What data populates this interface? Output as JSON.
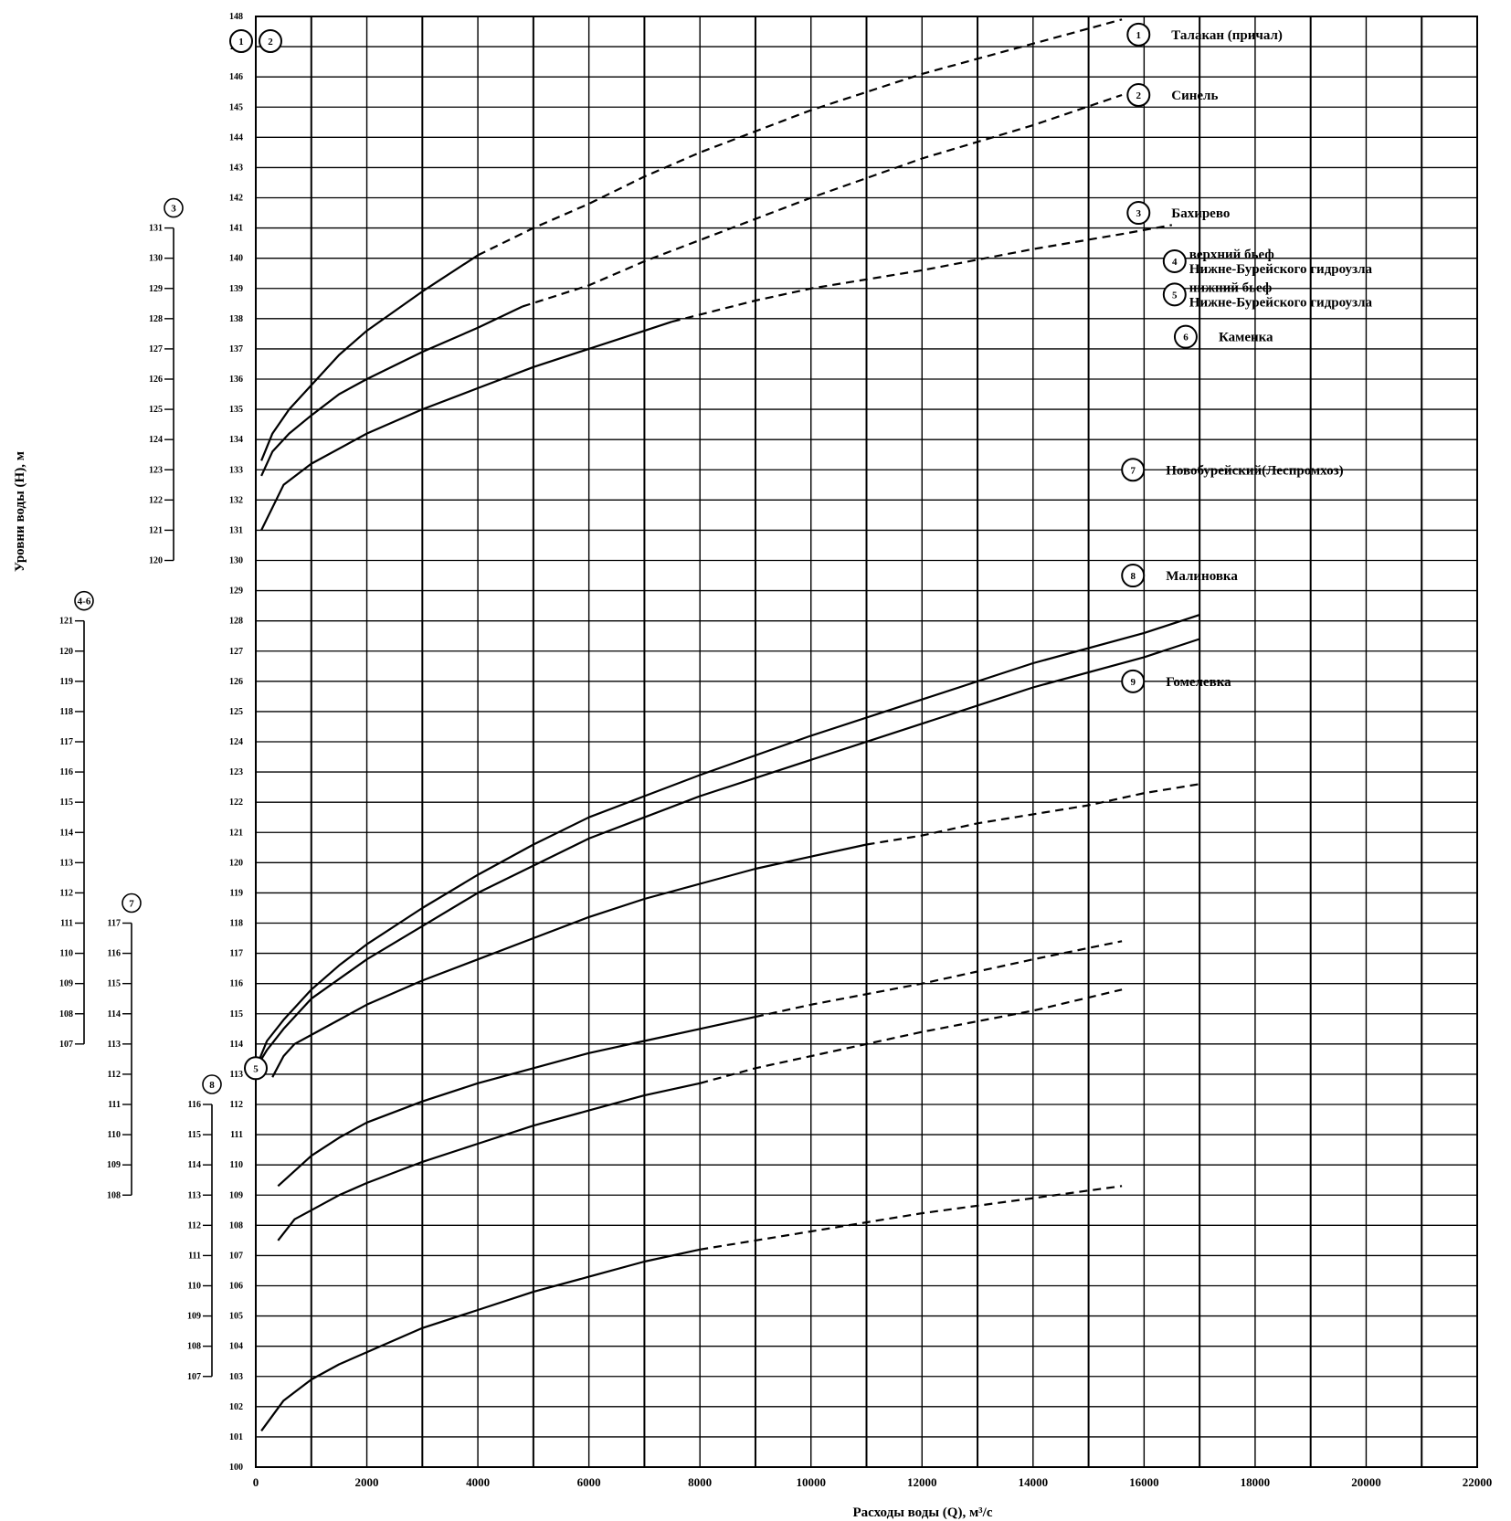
{
  "chart_data": {
    "type": "line",
    "xlabel": "Расходы воды (Q), м³/с",
    "ylabel": "Уровни воды (Н), м",
    "xlim": [
      0,
      22000
    ],
    "ylim": [
      100,
      148
    ],
    "grid": true,
    "x_ticks": [
      "0",
      "2000",
      "4000",
      "6000",
      "8000",
      "10000",
      "12000",
      "14000",
      "16000",
      "18000",
      "20000",
      "22000"
    ],
    "y_ticks": [
      "100",
      "101",
      "102",
      "103",
      "104",
      "105",
      "106",
      "107",
      "108",
      "109",
      "110",
      "111",
      "112",
      "113",
      "114",
      "115",
      "116",
      "117",
      "118",
      "119",
      "120",
      "121",
      "122",
      "123",
      "124",
      "125",
      "126",
      "127",
      "128",
      "129",
      "130",
      "131",
      "132",
      "133",
      "134",
      "135",
      "136",
      "137",
      "138",
      "139",
      "140",
      "141",
      "142",
      "143",
      "144",
      "145",
      "146",
      "147",
      "148"
    ],
    "aux_axes": [
      {
        "id": "4-6",
        "values": [
          "107",
          "108",
          "109",
          "110",
          "111",
          "112",
          "113",
          "114",
          "115",
          "116",
          "117",
          "118",
          "119",
          "120",
          "121"
        ],
        "from": 114,
        "to": 128
      },
      {
        "id": "3",
        "values": [
          "120",
          "121",
          "122",
          "123",
          "124",
          "125",
          "126",
          "127",
          "128",
          "129",
          "130",
          "131"
        ],
        "from": 130,
        "to": 141
      },
      {
        "id": "7",
        "values": [
          "108",
          "109",
          "110",
          "111",
          "112",
          "113",
          "114",
          "115",
          "116",
          "117"
        ],
        "from": 109,
        "to": 118
      },
      {
        "id": "8",
        "values": [
          "107",
          "108",
          "109",
          "110",
          "111",
          "112",
          "113",
          "114",
          "115",
          "116"
        ],
        "from": 103,
        "to": 112
      }
    ],
    "series": [
      {
        "id": "1",
        "name": "Талакан (причал)",
        "label_pos": [
          15900,
          147.4
        ],
        "solid": [
          [
            100,
            133.3
          ],
          [
            300,
            134.2
          ],
          [
            600,
            135.0
          ],
          [
            1000,
            135.8
          ],
          [
            1500,
            136.8
          ],
          [
            2000,
            137.6
          ],
          [
            3000,
            138.9
          ],
          [
            4000,
            140.1
          ]
        ],
        "dashed": [
          [
            4000,
            140.1
          ],
          [
            5000,
            141.0
          ],
          [
            6000,
            141.8
          ],
          [
            7000,
            142.7
          ],
          [
            8000,
            143.5
          ],
          [
            10000,
            144.9
          ],
          [
            12000,
            146.1
          ],
          [
            14000,
            147.1
          ],
          [
            15600,
            147.9
          ]
        ]
      },
      {
        "id": "2",
        "name": "Синель",
        "label_pos": [
          15900,
          145.4
        ],
        "solid": [
          [
            100,
            132.8
          ],
          [
            300,
            133.6
          ],
          [
            600,
            134.2
          ],
          [
            1000,
            134.8
          ],
          [
            1500,
            135.5
          ],
          [
            2000,
            136.0
          ],
          [
            3000,
            136.9
          ],
          [
            4000,
            137.7
          ],
          [
            4800,
            138.4
          ]
        ],
        "dashed": [
          [
            4800,
            138.4
          ],
          [
            6000,
            139.1
          ],
          [
            7000,
            139.9
          ],
          [
            8000,
            140.6
          ],
          [
            10000,
            142.0
          ],
          [
            12000,
            143.3
          ],
          [
            14000,
            144.4
          ],
          [
            15600,
            145.4
          ]
        ]
      },
      {
        "id": "3",
        "name": "Бахирево",
        "label_pos": [
          15900,
          141.5
        ],
        "solid": [
          [
            100,
            131.0
          ],
          [
            500,
            132.5
          ],
          [
            1000,
            133.2
          ],
          [
            2000,
            134.2
          ],
          [
            3000,
            135.0
          ],
          [
            4000,
            135.7
          ],
          [
            5000,
            136.4
          ],
          [
            6000,
            137.0
          ],
          [
            7000,
            137.6
          ],
          [
            7500,
            137.9
          ]
        ],
        "dashed": [
          [
            7500,
            137.9
          ],
          [
            9000,
            138.6
          ],
          [
            10000,
            139.0
          ],
          [
            12000,
            139.6
          ],
          [
            14000,
            140.3
          ],
          [
            15600,
            140.8
          ],
          [
            16500,
            141.1
          ]
        ]
      },
      {
        "id": "4",
        "name": "верхний бьеф Нижне-Бурейского гидроузла",
        "label_pos": [
          16550,
          139.9
        ],
        "solid": [
          [
            0,
            113.2
          ],
          [
            200,
            114.1
          ],
          [
            500,
            114.8
          ],
          [
            1000,
            115.8
          ],
          [
            1500,
            116.6
          ],
          [
            2000,
            117.3
          ],
          [
            3000,
            118.5
          ],
          [
            4000,
            119.6
          ],
          [
            5000,
            120.6
          ],
          [
            6000,
            121.5
          ],
          [
            7000,
            122.2
          ],
          [
            8000,
            122.9
          ],
          [
            10000,
            124.2
          ],
          [
            12000,
            125.4
          ],
          [
            14000,
            126.6
          ],
          [
            16000,
            127.6
          ],
          [
            17000,
            128.2
          ]
        ]
      },
      {
        "id": "5",
        "name": "нижний бьеф Нижне-Бурейского гидроузла",
        "label_pos": [
          16550,
          138.8
        ],
        "solid": [
          [
            0,
            113.2
          ],
          [
            200,
            113.8
          ],
          [
            500,
            114.5
          ],
          [
            1000,
            115.5
          ],
          [
            2000,
            116.8
          ],
          [
            3000,
            117.9
          ],
          [
            4000,
            119.0
          ],
          [
            5000,
            119.9
          ],
          [
            6000,
            120.8
          ],
          [
            7000,
            121.5
          ],
          [
            8000,
            122.2
          ],
          [
            10000,
            123.4
          ],
          [
            12000,
            124.6
          ],
          [
            14000,
            125.8
          ],
          [
            16000,
            126.8
          ],
          [
            17000,
            127.4
          ]
        ]
      },
      {
        "id": "6",
        "name": "Каменка",
        "label_pos": [
          16750,
          137.4
        ],
        "solid": [
          [
            300,
            112.9
          ],
          [
            500,
            113.6
          ],
          [
            700,
            114.0
          ],
          [
            1000,
            114.3
          ],
          [
            1500,
            114.8
          ],
          [
            2000,
            115.3
          ],
          [
            3000,
            116.1
          ],
          [
            4000,
            116.8
          ],
          [
            5000,
            117.5
          ],
          [
            6000,
            118.2
          ],
          [
            7000,
            118.8
          ],
          [
            8000,
            119.3
          ],
          [
            9000,
            119.8
          ],
          [
            10000,
            120.2
          ],
          [
            11000,
            120.6
          ]
        ],
        "dashed": [
          [
            11000,
            120.6
          ],
          [
            12000,
            120.9
          ],
          [
            13000,
            121.3
          ],
          [
            14000,
            121.6
          ],
          [
            15000,
            121.9
          ],
          [
            16000,
            122.3
          ],
          [
            17000,
            122.6
          ]
        ]
      },
      {
        "id": "7",
        "name": "Новобурейский(Леспромхоз)",
        "label_pos": [
          15800,
          133.0
        ],
        "solid": [
          [
            400,
            109.3
          ],
          [
            700,
            109.8
          ],
          [
            1000,
            110.3
          ],
          [
            1500,
            110.9
          ],
          [
            2000,
            111.4
          ],
          [
            3000,
            112.1
          ],
          [
            4000,
            112.7
          ],
          [
            5000,
            113.2
          ],
          [
            6000,
            113.7
          ],
          [
            7000,
            114.1
          ],
          [
            8000,
            114.5
          ],
          [
            9000,
            114.9
          ]
        ],
        "dashed": [
          [
            9000,
            114.9
          ],
          [
            10000,
            115.3
          ],
          [
            12000,
            116.0
          ],
          [
            14000,
            116.8
          ],
          [
            15600,
            117.4
          ]
        ]
      },
      {
        "id": "8",
        "name": "Малиновка",
        "label_pos": [
          15800,
          129.5
        ],
        "solid": [
          [
            400,
            107.5
          ],
          [
            700,
            108.2
          ],
          [
            1000,
            108.5
          ],
          [
            1500,
            109.0
          ],
          [
            2000,
            109.4
          ],
          [
            3000,
            110.1
          ],
          [
            4000,
            110.7
          ],
          [
            5000,
            111.3
          ],
          [
            6000,
            111.8
          ],
          [
            7000,
            112.3
          ],
          [
            8000,
            112.7
          ]
        ],
        "dashed": [
          [
            8000,
            112.7
          ],
          [
            9000,
            113.2
          ],
          [
            10000,
            113.6
          ],
          [
            12000,
            114.4
          ],
          [
            14000,
            115.1
          ],
          [
            15600,
            115.8
          ]
        ]
      },
      {
        "id": "9",
        "name": "Гомелевка",
        "label_pos": [
          15800,
          126.0
        ],
        "solid": [
          [
            100,
            101.2
          ],
          [
            500,
            102.2
          ],
          [
            1000,
            102.9
          ],
          [
            1500,
            103.4
          ],
          [
            2000,
            103.8
          ],
          [
            3000,
            104.6
          ],
          [
            4000,
            105.2
          ],
          [
            5000,
            105.8
          ],
          [
            6000,
            106.3
          ],
          [
            7000,
            106.8
          ],
          [
            8000,
            107.2
          ]
        ],
        "dashed": [
          [
            8000,
            107.2
          ],
          [
            10000,
            107.8
          ],
          [
            12000,
            108.4
          ],
          [
            14000,
            108.9
          ],
          [
            15600,
            109.3
          ]
        ]
      }
    ],
    "corner_markers": [
      "1",
      "2"
    ],
    "origin_marker": "5"
  }
}
